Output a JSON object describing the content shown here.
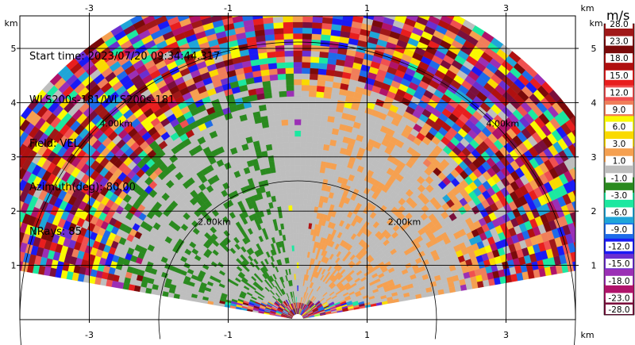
{
  "info": {
    "start_time": "Start time: 2023/07/20 09:34:44.317",
    "instrument": "WLS200s-181/WLS200s-181",
    "field": "Field: VEL",
    "azimuth": "Azimuth(deg): 80.00",
    "nrays": "NRays: 85"
  },
  "chart_data": {
    "type": "heatmap",
    "title": "",
    "xlabel": "km",
    "ylabel": "km",
    "xlim": [
      -4.0,
      4.0
    ],
    "ylim": [
      0.0,
      5.6
    ],
    "x_ticks": [
      -3,
      -1,
      1,
      3
    ],
    "y_ticks": [
      1,
      2,
      3,
      4,
      5
    ],
    "x_tick_labels": [
      "-3",
      "-1",
      "1",
      "3"
    ],
    "y_tick_labels": [
      "1",
      "2",
      "3",
      "4",
      "5"
    ],
    "axis_unit_label": "km",
    "range_rings": [
      {
        "radius_km": 2.0,
        "label": "2.00km"
      },
      {
        "radius_km": 4.0,
        "label": "4.00km"
      }
    ],
    "max_range_km": 4.95,
    "grid": true,
    "colorbar": {
      "unit": "m/s",
      "levels": [
        "-28.0",
        "-23.0",
        "-18.0",
        "-15.0",
        "-12.0",
        "-9.0",
        "-6.0",
        "-3.0",
        "-1.0",
        "1.0",
        "3.0",
        "6.0",
        "9.0",
        "12.0",
        "15.0",
        "18.0",
        "23.0",
        "28.0"
      ],
      "colors": [
        "#7a0f3c",
        "#b0136a",
        "#9b2fb5",
        "#6b2fd0",
        "#1a1af5",
        "#1e6be8",
        "#1fa5d8",
        "#1ce8a0",
        "#2a8a1f",
        "#bebebe",
        "#f5a050",
        "#fada00",
        "#fafa00",
        "#f07e5a",
        "#f05050",
        "#e81e1e",
        "#b01010",
        "#7a0a0a",
        "#a01818"
      ]
    }
  }
}
